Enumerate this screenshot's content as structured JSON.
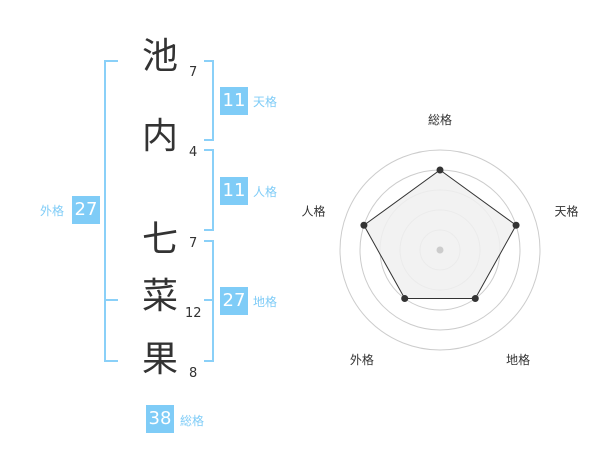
{
  "name": {
    "characters": [
      {
        "char": "池",
        "strokes": "7"
      },
      {
        "char": "内",
        "strokes": "4"
      },
      {
        "char": "七",
        "strokes": "7"
      },
      {
        "char": "菜",
        "strokes": "12"
      },
      {
        "char": "果",
        "strokes": "8"
      }
    ]
  },
  "kaku": {
    "tenkaku": {
      "label": "天格",
      "value": "11"
    },
    "jinkaku": {
      "label": "人格",
      "value": "11"
    },
    "chikaku": {
      "label": "地格",
      "value": "27"
    },
    "gaikaku": {
      "label": "外格",
      "value": "27"
    },
    "soukaku": {
      "label": "総格",
      "value": "38"
    }
  },
  "colors": {
    "accent": "#7fccf7",
    "text": "#333333",
    "radar_fill": "#f0f0f0"
  },
  "chart_data": {
    "type": "radar",
    "axes": [
      "総格",
      "天格",
      "地格",
      "外格",
      "人格"
    ],
    "values": [
      4,
      4,
      3,
      3,
      4
    ],
    "range": [
      0,
      5
    ],
    "grid": true
  }
}
